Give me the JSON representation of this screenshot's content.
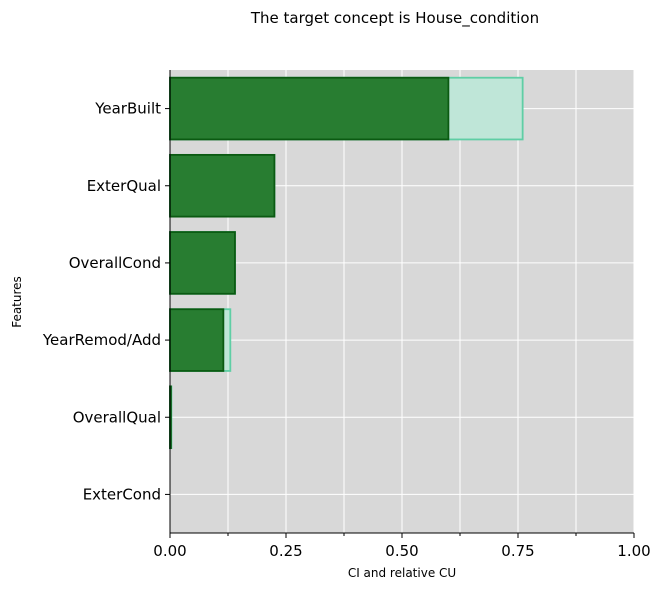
{
  "chart_data": {
    "type": "bar",
    "orientation": "horizontal",
    "title": "The target concept is House_condition",
    "xlabel": "CI and relative CU",
    "ylabel": "Features",
    "categories": [
      "YearBuilt",
      "ExterQual",
      "OverallCond",
      "YearRemod/Add",
      "OverallQual",
      "ExterCond"
    ],
    "series": [
      {
        "values": [
          0.76,
          0.225,
          0.14,
          0.13,
          0.003,
          0.0
        ],
        "color": "#bfe6d8",
        "edge": "#5fcea5"
      },
      {
        "values": [
          0.6,
          0.225,
          0.14,
          0.115,
          0.002,
          0.0
        ],
        "color": "#23792b",
        "edge": "#0b5a12"
      }
    ],
    "xlim": [
      0,
      1
    ],
    "xticks": [
      0.0,
      0.25,
      0.5,
      0.75,
      1.0
    ],
    "xtick_labels": [
      "0.00",
      "0.25",
      "0.50",
      "0.75",
      "1.00"
    ],
    "minor_xticks": [
      0.125,
      0.375,
      0.625,
      0.875
    ],
    "grid": true,
    "background": "#d8d8d8"
  }
}
